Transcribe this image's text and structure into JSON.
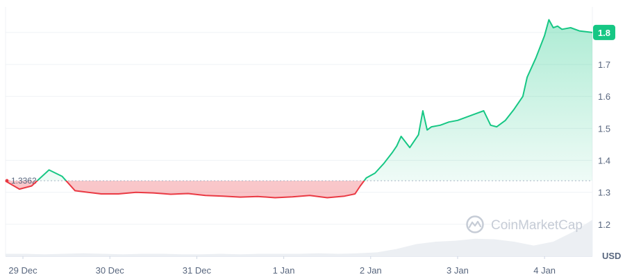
{
  "chart_data": {
    "type": "line",
    "ylabel": "",
    "unit_label": "USD",
    "reference_value": 1.3362,
    "reference_label": "1.3362",
    "current_value_label": "1.8",
    "ylim": [
      1.1,
      1.88
    ],
    "y_ticks": [
      1.2,
      1.3,
      1.4,
      1.5,
      1.6,
      1.7,
      1.8
    ],
    "y_tick_labels": [
      "1.2",
      "1.3",
      "1.4",
      "1.5",
      "1.6",
      "1.7",
      "1.8"
    ],
    "xlim": [
      -0.2,
      6.55
    ],
    "x_ticks": [
      0,
      1,
      2,
      3,
      4,
      5,
      6
    ],
    "x_tick_labels": [
      "29 Dec",
      "30 Dec",
      "31 Dec",
      "1 Jan",
      "2 Jan",
      "3 Jan",
      "4 Jan"
    ],
    "x": [
      -0.2,
      -0.04,
      0.1,
      0.2,
      0.3,
      0.45,
      0.6,
      0.75,
      0.9,
      1.1,
      1.3,
      1.5,
      1.7,
      1.9,
      2.1,
      2.3,
      2.5,
      2.7,
      2.9,
      3.1,
      3.3,
      3.5,
      3.7,
      3.82,
      3.88,
      3.95,
      4.05,
      4.15,
      4.25,
      4.3,
      4.35,
      4.45,
      4.55,
      4.6,
      4.65,
      4.7,
      4.8,
      4.9,
      5.0,
      5.1,
      5.2,
      5.3,
      5.38,
      5.45,
      5.55,
      5.65,
      5.75,
      5.8,
      5.9,
      6.0,
      6.05,
      6.1,
      6.15,
      6.2,
      6.3,
      6.4,
      6.55
    ],
    "values": [
      1.335,
      1.31,
      1.32,
      1.345,
      1.37,
      1.35,
      1.305,
      1.3,
      1.295,
      1.295,
      1.3,
      1.298,
      1.294,
      1.296,
      1.29,
      1.288,
      1.285,
      1.287,
      1.283,
      1.286,
      1.29,
      1.283,
      1.288,
      1.295,
      1.32,
      1.345,
      1.36,
      1.39,
      1.425,
      1.445,
      1.475,
      1.44,
      1.48,
      1.555,
      1.495,
      1.505,
      1.51,
      1.52,
      1.525,
      1.535,
      1.545,
      1.555,
      1.51,
      1.505,
      1.525,
      1.56,
      1.6,
      1.66,
      1.72,
      1.79,
      1.84,
      1.815,
      1.82,
      1.81,
      1.815,
      1.805,
      1.8
    ],
    "above_color": "#16c784",
    "below_color": "#ea3943",
    "volume_profile": [
      0.05,
      0.05,
      0.04,
      0.05,
      0.06,
      0.05,
      0.04,
      0.05,
      0.05,
      0.04,
      0.04,
      0.05,
      0.04,
      0.05,
      0.05,
      0.05,
      0.06,
      0.05,
      0.06,
      0.08,
      0.15,
      0.25,
      0.3,
      0.32,
      0.36,
      0.35,
      0.3,
      0.22,
      0.3,
      0.5,
      0.75
    ],
    "watermark": "CoinMarketCap",
    "grid": true
  }
}
